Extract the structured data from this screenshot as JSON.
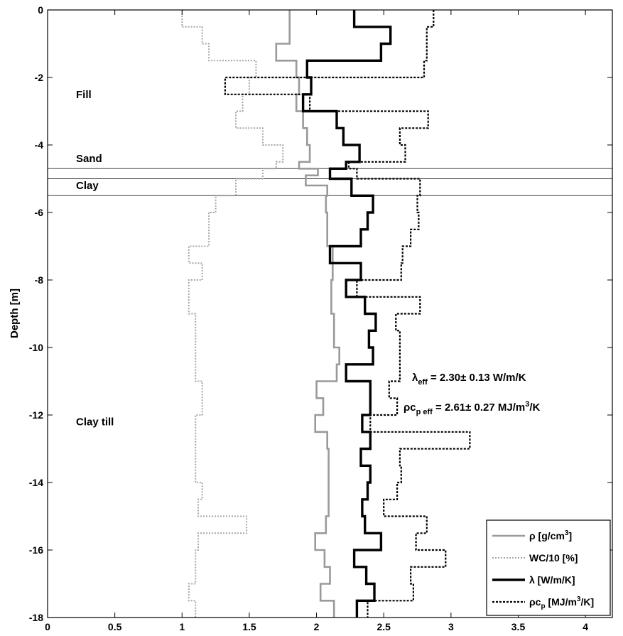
{
  "chart_data": {
    "type": "line",
    "title": "",
    "xlabel": "",
    "ylabel": "Depth [m]",
    "xlim": [
      0,
      4.2
    ],
    "ylim": [
      -18,
      0
    ],
    "xticks": [
      "0",
      "0.5",
      "1",
      "1.5",
      "2",
      "2.5",
      "3",
      "3.5",
      "4"
    ],
    "yticks": [
      "0",
      "-2",
      "-4",
      "-6",
      "-8",
      "-10",
      "-12",
      "-14",
      "-16",
      "-18"
    ],
    "grid": false,
    "legend_position": "bottom-right",
    "layers": [
      {
        "label": "Fill",
        "depth": -2.5
      },
      {
        "label": "Sand",
        "depth": -4.4
      },
      {
        "label": "Clay",
        "depth": -5.2
      },
      {
        "label": "Clay till",
        "depth": -12.2
      }
    ],
    "boundaries": [
      -4.7,
      -5.0,
      -5.5
    ],
    "annotations": {
      "lambda": {
        "sym": "λ",
        "sub": "eff",
        "text": " = 2.30± 0.13 W/m/K"
      },
      "rhocp": {
        "sym": "ρc",
        "sub": "p eff",
        "text": " = 2.61± 0.27 MJ/m",
        "sup": "3",
        "tail": "/K"
      }
    },
    "series": [
      {
        "name": "ρ [g/cm3]",
        "legend": {
          "pre": "ρ [g/cm",
          "sup": "3",
          "post": "]"
        },
        "color": "#9a9a9a",
        "dash": "solid",
        "width": 2.6,
        "steps": [
          [
            0,
            -1,
            1.8
          ],
          [
            -1,
            -1.5,
            1.7
          ],
          [
            -1.5,
            -2,
            1.85
          ],
          [
            -2,
            -2.5,
            1.87
          ],
          [
            -2.5,
            -3,
            1.85
          ],
          [
            -3,
            -3.5,
            1.9
          ],
          [
            -3.5,
            -4,
            1.93
          ],
          [
            -4,
            -4.5,
            1.95
          ],
          [
            -4.5,
            -4.7,
            1.87
          ],
          [
            -4.7,
            -4.9,
            2.01
          ],
          [
            -4.9,
            -5.2,
            1.92
          ],
          [
            -5.2,
            -5.5,
            2.08
          ],
          [
            -5.5,
            -6,
            2.07
          ],
          [
            -6,
            -7,
            2.08
          ],
          [
            -7,
            -8,
            2.12
          ],
          [
            -8,
            -9,
            2.11
          ],
          [
            -9,
            -10,
            2.13
          ],
          [
            -10,
            -10.5,
            2.17
          ],
          [
            -10.5,
            -11,
            2.15
          ],
          [
            -11,
            -11.5,
            2.0
          ],
          [
            -11.5,
            -12,
            2.05
          ],
          [
            -12,
            -12.5,
            1.99
          ],
          [
            -12.5,
            -13,
            2.08
          ],
          [
            -13,
            -14,
            2.09
          ],
          [
            -14,
            -15,
            2.09
          ],
          [
            -15,
            -15.5,
            2.07
          ],
          [
            -15.5,
            -16,
            1.99
          ],
          [
            -16,
            -16.5,
            2.06
          ],
          [
            -16.5,
            -17,
            2.1
          ],
          [
            -17,
            -17.5,
            2.03
          ],
          [
            -17.5,
            -18,
            2.13
          ]
        ]
      },
      {
        "name": "WC/10 [%]",
        "legend": {
          "pre": "WC/10 [%]",
          "sup": "",
          "post": ""
        },
        "color": "#a6a6a6",
        "dash": "2,2",
        "width": 2.0,
        "steps": [
          [
            0,
            -0.5,
            1.0
          ],
          [
            -0.5,
            -1,
            1.15
          ],
          [
            -1,
            -1.5,
            1.2
          ],
          [
            -1.5,
            -2,
            1.55
          ],
          [
            -2,
            -2.5,
            1.5
          ],
          [
            -2.5,
            -3,
            1.45
          ],
          [
            -3,
            -3.5,
            1.4
          ],
          [
            -3.5,
            -4,
            1.6
          ],
          [
            -4,
            -4.5,
            1.75
          ],
          [
            -4.5,
            -4.7,
            1.7
          ],
          [
            -4.7,
            -5,
            1.6
          ],
          [
            -5,
            -5.5,
            1.4
          ],
          [
            -5.5,
            -6,
            1.25
          ],
          [
            -6,
            -7,
            1.2
          ],
          [
            -7,
            -7.5,
            1.05
          ],
          [
            -7.5,
            -8,
            1.15
          ],
          [
            -8,
            -9,
            1.05
          ],
          [
            -9,
            -10,
            1.1
          ],
          [
            -10,
            -11,
            1.1
          ],
          [
            -11,
            -12,
            1.15
          ],
          [
            -12,
            -13,
            1.1
          ],
          [
            -13,
            -14,
            1.1
          ],
          [
            -14,
            -14.5,
            1.15
          ],
          [
            -14.5,
            -15,
            1.12
          ],
          [
            -15,
            -15.5,
            1.48
          ],
          [
            -15.5,
            -16,
            1.12
          ],
          [
            -16,
            -17,
            1.1
          ],
          [
            -17,
            -17.5,
            1.05
          ],
          [
            -17.5,
            -18,
            1.1
          ]
        ]
      },
      {
        "name": "λ [W/m/K]",
        "legend": {
          "pre": "λ [W/m/K]",
          "sup": "",
          "post": ""
        },
        "color": "#000000",
        "dash": "solid",
        "width": 3.4,
        "steps": [
          [
            0,
            -0.5,
            2.28
          ],
          [
            -0.5,
            -1,
            2.55
          ],
          [
            -1,
            -1.5,
            2.48
          ],
          [
            -1.5,
            -2,
            1.93
          ],
          [
            -2,
            -2.5,
            1.96
          ],
          [
            -2.5,
            -3,
            1.9
          ],
          [
            -3,
            -3.5,
            2.15
          ],
          [
            -3.5,
            -4,
            2.2
          ],
          [
            -4,
            -4.5,
            2.32
          ],
          [
            -4.5,
            -4.7,
            2.22
          ],
          [
            -4.7,
            -5,
            2.1
          ],
          [
            -5,
            -5.5,
            2.26
          ],
          [
            -5.5,
            -6,
            2.42
          ],
          [
            -6,
            -6.5,
            2.38
          ],
          [
            -6.5,
            -7,
            2.33
          ],
          [
            -7,
            -7.5,
            2.1
          ],
          [
            -7.5,
            -8,
            2.33
          ],
          [
            -8,
            -8.5,
            2.22
          ],
          [
            -8.5,
            -9,
            2.36
          ],
          [
            -9,
            -9.5,
            2.44
          ],
          [
            -9.5,
            -10,
            2.39
          ],
          [
            -10,
            -10.5,
            2.42
          ],
          [
            -10.5,
            -11,
            2.22
          ],
          [
            -11,
            -12,
            2.4
          ],
          [
            -12,
            -12.5,
            2.34
          ],
          [
            -12.5,
            -13,
            2.4
          ],
          [
            -13,
            -13.5,
            2.33
          ],
          [
            -13.5,
            -14,
            2.4
          ],
          [
            -14,
            -14.5,
            2.38
          ],
          [
            -14.5,
            -15,
            2.34
          ],
          [
            -15,
            -15.5,
            2.36
          ],
          [
            -15.5,
            -16,
            2.48
          ],
          [
            -16,
            -16.5,
            2.28
          ],
          [
            -16.5,
            -17,
            2.37
          ],
          [
            -17,
            -17.5,
            2.43
          ],
          [
            -17.5,
            -18,
            2.3
          ]
        ]
      },
      {
        "name": "ρcp [MJ/m3/K]",
        "legend": {
          "pre": "ρc",
          "sub": "p",
          "mid": " [MJ/m",
          "sup": "3",
          "post": "/K]"
        },
        "color": "#000000",
        "dash": "3,2",
        "width": 2.2,
        "steps": [
          [
            0,
            -0.5,
            2.87
          ],
          [
            -0.5,
            -1,
            2.82
          ],
          [
            -1,
            -1.5,
            2.82
          ],
          [
            -1.5,
            -2,
            2.8
          ],
          [
            -2,
            -2.5,
            1.32
          ],
          [
            -2.5,
            -3,
            1.95
          ],
          [
            -3,
            -3.5,
            2.83
          ],
          [
            -3.5,
            -4,
            2.62
          ],
          [
            -4,
            -4.5,
            2.66
          ],
          [
            -4.5,
            -4.7,
            2.24
          ],
          [
            -4.7,
            -5,
            2.3
          ],
          [
            -5,
            -5.5,
            2.77
          ],
          [
            -5.5,
            -6,
            2.75
          ],
          [
            -6,
            -6.5,
            2.76
          ],
          [
            -6.5,
            -7,
            2.7
          ],
          [
            -7,
            -7.5,
            2.64
          ],
          [
            -7.5,
            -8,
            2.63
          ],
          [
            -8,
            -8.5,
            2.3
          ],
          [
            -8.5,
            -9,
            2.77
          ],
          [
            -9,
            -9.5,
            2.59
          ],
          [
            -9.5,
            -10,
            2.62
          ],
          [
            -10,
            -11,
            2.62
          ],
          [
            -11,
            -11.5,
            2.54
          ],
          [
            -11.5,
            -12,
            2.6
          ],
          [
            -12,
            -12.5,
            2.4
          ],
          [
            -12.5,
            -13,
            3.14
          ],
          [
            -13,
            -13.5,
            2.62
          ],
          [
            -13.5,
            -14,
            2.63
          ],
          [
            -14,
            -14.5,
            2.6
          ],
          [
            -14.5,
            -15,
            2.5
          ],
          [
            -15,
            -15.5,
            2.82
          ],
          [
            -15.5,
            -16,
            2.74
          ],
          [
            -16,
            -16.5,
            2.96
          ],
          [
            -16.5,
            -17,
            2.7
          ],
          [
            -17,
            -17.5,
            2.72
          ],
          [
            -17.5,
            -18,
            2.38
          ]
        ]
      }
    ]
  }
}
